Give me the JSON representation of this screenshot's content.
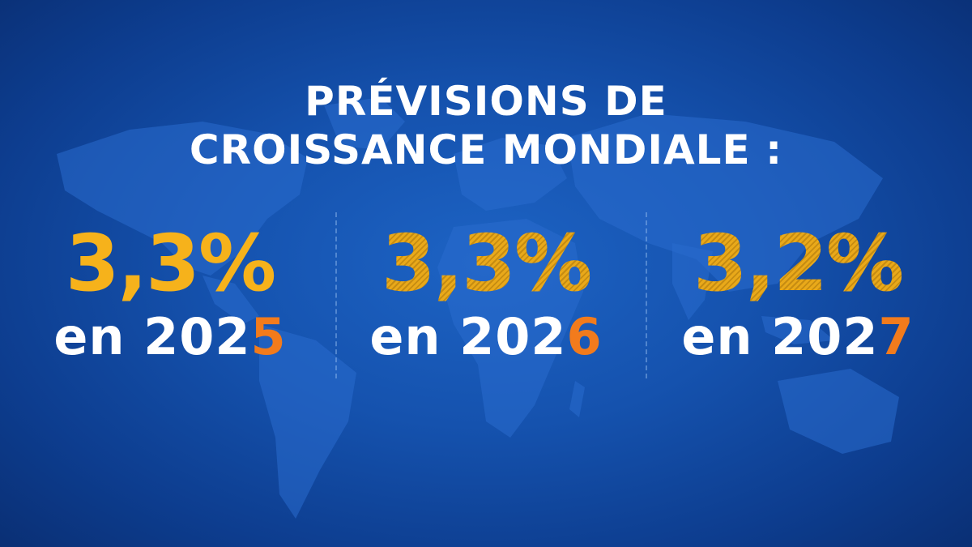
{
  "title": {
    "line1": "PRÉVISIONS DE",
    "line2": "CROISSANCE MONDIALE :"
  },
  "forecasts": [
    {
      "rate": "3,3%",
      "year_prefix": "en 202",
      "year_last_digit": "5"
    },
    {
      "rate": "3,3%",
      "year_prefix": "en 202",
      "year_last_digit": "6"
    },
    {
      "rate": "3,2%",
      "year_prefix": "en 202",
      "year_last_digit": "7"
    }
  ],
  "colors": {
    "background": "#1552ae",
    "rate": "#f6b21b",
    "year_text": "#ffffff",
    "year_accent": "#f27b1c"
  },
  "background_graphic": "world-map"
}
